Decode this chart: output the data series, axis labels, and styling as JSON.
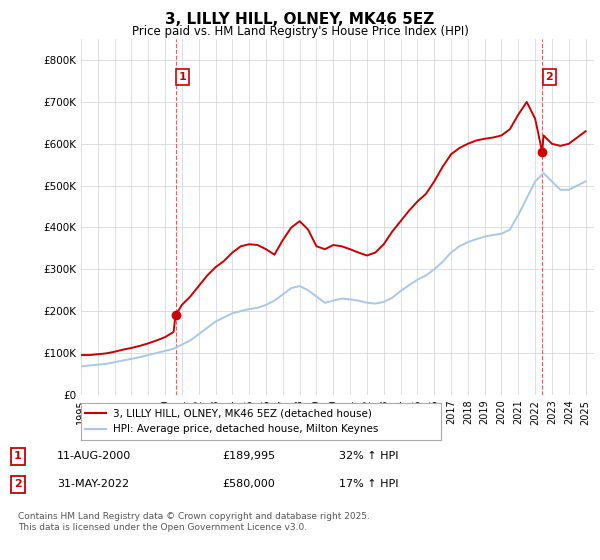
{
  "title": "3, LILLY HILL, OLNEY, MK46 5EZ",
  "subtitle": "Price paid vs. HM Land Registry's House Price Index (HPI)",
  "ylim": [
    0,
    850000
  ],
  "yticks": [
    0,
    100000,
    200000,
    300000,
    400000,
    500000,
    600000,
    700000,
    800000
  ],
  "ytick_labels": [
    "£0",
    "£100K",
    "£200K",
    "£300K",
    "£400K",
    "£500K",
    "£600K",
    "£700K",
    "£800K"
  ],
  "hpi_color": "#a8c8e8",
  "price_color": "#cc0000",
  "purchase1_year": 2000.62,
  "purchase1_price": 189995,
  "purchase2_year": 2022.42,
  "purchase2_price": 580000,
  "legend_label1": "3, LILLY HILL, OLNEY, MK46 5EZ (detached house)",
  "legend_label2": "HPI: Average price, detached house, Milton Keynes",
  "table_row1": [
    "1",
    "11-AUG-2000",
    "£189,995",
    "32% ↑ HPI"
  ],
  "table_row2": [
    "2",
    "31-MAY-2022",
    "£580,000",
    "17% ↑ HPI"
  ],
  "footnote": "Contains HM Land Registry data © Crown copyright and database right 2025.\nThis data is licensed under the Open Government Licence v3.0.",
  "background_color": "#ffffff",
  "grid_color": "#d0d0d0",
  "hpi_years": [
    1995,
    1995.5,
    1996,
    1996.5,
    1997,
    1997.5,
    1998,
    1998.5,
    1999,
    1999.5,
    2000,
    2000.5,
    2001,
    2001.5,
    2002,
    2002.5,
    2003,
    2003.5,
    2004,
    2004.5,
    2005,
    2005.5,
    2006,
    2006.5,
    2007,
    2007.5,
    2008,
    2008.5,
    2009,
    2009.5,
    2010,
    2010.5,
    2011,
    2011.5,
    2012,
    2012.5,
    2013,
    2013.5,
    2014,
    2014.5,
    2015,
    2015.5,
    2016,
    2016.5,
    2017,
    2017.5,
    2018,
    2018.5,
    2019,
    2019.5,
    2020,
    2020.5,
    2021,
    2021.5,
    2022,
    2022.5,
    2023,
    2023.5,
    2024,
    2024.5,
    2025
  ],
  "hpi_values": [
    68000,
    70000,
    72000,
    74000,
    78000,
    82000,
    86000,
    90000,
    95000,
    100000,
    105000,
    110000,
    120000,
    130000,
    145000,
    160000,
    175000,
    185000,
    195000,
    200000,
    205000,
    208000,
    215000,
    225000,
    240000,
    255000,
    260000,
    250000,
    235000,
    220000,
    225000,
    230000,
    228000,
    225000,
    220000,
    218000,
    222000,
    232000,
    248000,
    262000,
    275000,
    285000,
    300000,
    318000,
    340000,
    355000,
    365000,
    372000,
    378000,
    382000,
    385000,
    395000,
    430000,
    470000,
    510000,
    530000,
    510000,
    490000,
    490000,
    500000,
    510000
  ],
  "price_years": [
    1995,
    1995.5,
    1996,
    1996.5,
    1997,
    1997.5,
    1998,
    1998.5,
    1999,
    1999.5,
    2000,
    2000.5,
    2000.62,
    2001,
    2001.5,
    2002,
    2002.5,
    2003,
    2003.5,
    2004,
    2004.5,
    2005,
    2005.5,
    2006,
    2006.5,
    2007,
    2007.5,
    2008,
    2008.5,
    2009,
    2009.5,
    2010,
    2010.5,
    2011,
    2011.5,
    2012,
    2012.5,
    2013,
    2013.5,
    2014,
    2014.5,
    2015,
    2015.5,
    2016,
    2016.5,
    2017,
    2017.5,
    2018,
    2018.5,
    2019,
    2019.5,
    2020,
    2020.5,
    2021,
    2021.5,
    2022,
    2022.42,
    2022.5,
    2023,
    2023.5,
    2024,
    2024.5,
    2025
  ],
  "price_values": [
    95000,
    95000,
    97000,
    99000,
    103000,
    108000,
    112000,
    117000,
    123000,
    130000,
    138000,
    150000,
    189995,
    215000,
    235000,
    260000,
    285000,
    305000,
    320000,
    340000,
    355000,
    360000,
    358000,
    348000,
    335000,
    370000,
    400000,
    415000,
    395000,
    355000,
    348000,
    358000,
    355000,
    348000,
    340000,
    333000,
    340000,
    360000,
    390000,
    415000,
    440000,
    462000,
    480000,
    510000,
    545000,
    575000,
    590000,
    600000,
    608000,
    612000,
    615000,
    620000,
    635000,
    670000,
    700000,
    660000,
    580000,
    620000,
    600000,
    595000,
    600000,
    615000,
    630000
  ]
}
